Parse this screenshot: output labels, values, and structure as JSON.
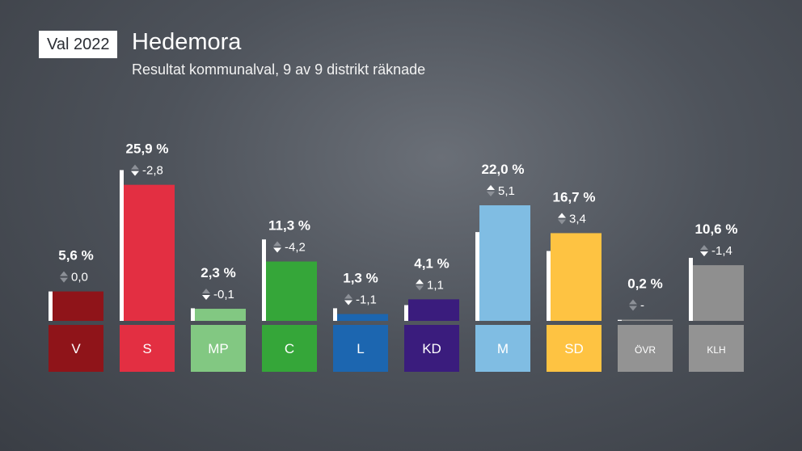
{
  "header": {
    "badge": "Val 2022",
    "title": "Hedemora",
    "subtitle": "Resultat kommunalval, 9 av 9 distrikt räknade"
  },
  "chart_data": {
    "type": "bar",
    "categories": [
      "V",
      "S",
      "MP",
      "C",
      "L",
      "KD",
      "M",
      "SD",
      "ÖVR",
      "KLH"
    ],
    "values": [
      5.6,
      25.9,
      2.3,
      11.3,
      1.3,
      4.1,
      22.0,
      16.7,
      0.2,
      10.6
    ],
    "value_labels": [
      "5,6 %",
      "25,9 %",
      "2,3 %",
      "11,3 %",
      "1,3 %",
      "4,1 %",
      "22,0 %",
      "16,7 %",
      "0,2 %",
      "10,6 %"
    ],
    "change_labels": [
      "0,0",
      "-2,8",
      "-0,1",
      "-4,2",
      "-1,1",
      "1,1",
      "5,1",
      "3,4",
      "-",
      "-1,4"
    ],
    "change_direction": [
      "none",
      "down",
      "down",
      "down",
      "down",
      "up",
      "up",
      "up",
      "none",
      "down"
    ],
    "previous_values": [
      5.6,
      28.7,
      2.4,
      15.5,
      2.4,
      3.0,
      16.9,
      13.3,
      0.2,
      12.0
    ],
    "colors": [
      "#8f1419",
      "#e32f42",
      "#82c882",
      "#35a639",
      "#1c66b0",
      "#3a1c7d",
      "#80bde3",
      "#fec342",
      "#8f8f8f",
      "#8f8f8f"
    ],
    "label_colors": [
      "#8f1419",
      "#e32f42",
      "#82c882",
      "#35a639",
      "#1c66b0",
      "#3a1c7d",
      "#80bde3",
      "#fec342",
      "#939393",
      "#939393"
    ],
    "title": "Hedemora",
    "subtitle": "Resultat kommunalval, 9 av 9 distrikt räknade"
  }
}
